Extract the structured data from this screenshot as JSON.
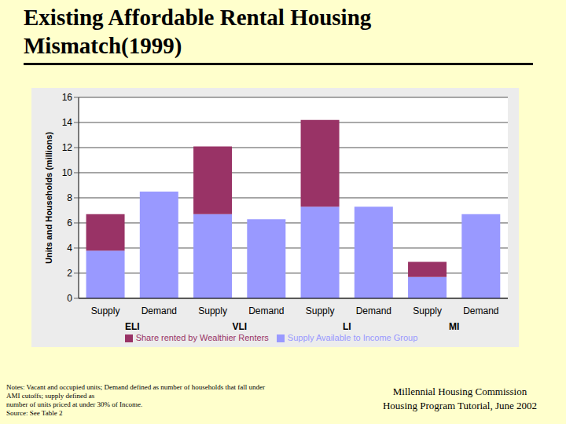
{
  "chart_data": {
    "type": "bar",
    "title": "Existing Affordable Rental Housing Mismatch(1999)",
    "y_label": "Units and Households (millions)",
    "categories": [
      "Supply",
      "Demand",
      "Supply",
      "Demand",
      "Supply",
      "Demand",
      "Supply",
      "Demand"
    ],
    "groups": [
      "ELI",
      "VLI",
      "LI",
      "MI"
    ],
    "series": [
      {
        "name": "Supply Available to Income Group",
        "color": "#9999ff",
        "values": [
          3.8,
          8.5,
          6.7,
          6.3,
          7.3,
          7.3,
          1.7,
          6.7
        ]
      },
      {
        "name": "Share rented by Wealthier Renters",
        "color": "#993366",
        "values": [
          2.9,
          null,
          5.4,
          null,
          6.9,
          null,
          1.2,
          null
        ]
      }
    ],
    "ylim": [
      0,
      16
    ],
    "yticks": [
      0,
      2,
      4,
      6,
      8,
      10,
      12,
      14,
      16
    ],
    "grid": true,
    "stacked": true,
    "legend": "bottom"
  },
  "notes": [
    "Notes: Vacant and occupied units; Demand defined as number of households that fall under",
    "AMI cutoffs; supply defined as",
    "number of units priced at under 30% of Income.",
    "Source:  See Table 2"
  ],
  "footer": [
    "Millennial Housing Commission",
    "Housing Program Tutorial, June 2002"
  ]
}
